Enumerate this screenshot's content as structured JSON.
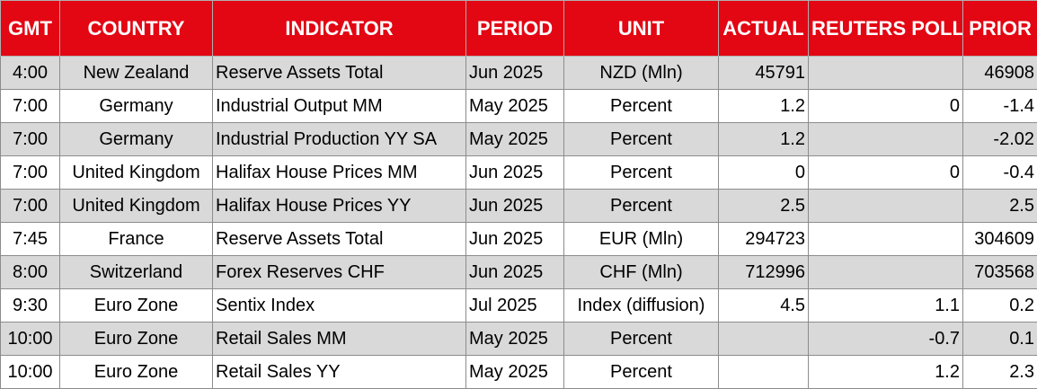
{
  "columns": [
    "GMT",
    "COUNTRY",
    "INDICATOR",
    "PERIOD",
    "UNIT",
    "ACTUAL",
    "REUTERS POLL",
    "PRIOR"
  ],
  "rows": [
    {
      "gmt": "4:00",
      "country": "New Zealand",
      "indicator": "Reserve Assets Total",
      "period": "Jun 2025",
      "unit": "NZD (Mln)",
      "actual": "45791",
      "poll": "",
      "prior": "46908"
    },
    {
      "gmt": "7:00",
      "country": "Germany",
      "indicator": "Industrial Output MM",
      "period": "May 2025",
      "unit": "Percent",
      "actual": "1.2",
      "poll": "0",
      "prior": "-1.4"
    },
    {
      "gmt": "7:00",
      "country": "Germany",
      "indicator": "Industrial Production YY SA",
      "period": "May 2025",
      "unit": "Percent",
      "actual": "1.2",
      "poll": "",
      "prior": "-2.02"
    },
    {
      "gmt": "7:00",
      "country": "United Kingdom",
      "indicator": "Halifax House Prices MM",
      "period": "Jun 2025",
      "unit": "Percent",
      "actual": "0",
      "poll": "0",
      "prior": "-0.4"
    },
    {
      "gmt": "7:00",
      "country": "United Kingdom",
      "indicator": "Halifax House Prices YY",
      "period": "Jun 2025",
      "unit": "Percent",
      "actual": "2.5",
      "poll": "",
      "prior": "2.5"
    },
    {
      "gmt": "7:45",
      "country": "France",
      "indicator": "Reserve Assets Total",
      "period": "Jun 2025",
      "unit": "EUR (Mln)",
      "actual": "294723",
      "poll": "",
      "prior": "304609"
    },
    {
      "gmt": "8:00",
      "country": "Switzerland",
      "indicator": "Forex Reserves CHF",
      "period": "Jun 2025",
      "unit": "CHF (Mln)",
      "actual": "712996",
      "poll": "",
      "prior": "703568"
    },
    {
      "gmt": "9:30",
      "country": "Euro Zone",
      "indicator": "Sentix Index",
      "period": "Jul 2025",
      "unit": "Index (diffusion)",
      "actual": "4.5",
      "poll": "1.1",
      "prior": "0.2"
    },
    {
      "gmt": "10:00",
      "country": "Euro Zone",
      "indicator": "Retail Sales MM",
      "period": "May 2025",
      "unit": "Percent",
      "actual": "",
      "poll": "-0.7",
      "prior": "0.1"
    },
    {
      "gmt": "10:00",
      "country": "Euro Zone",
      "indicator": "Retail Sales YY",
      "period": "May 2025",
      "unit": "Percent",
      "actual": "",
      "poll": "1.2",
      "prior": "2.3"
    }
  ],
  "colors": {
    "header_bg": "#e30613",
    "header_text": "#ffffff",
    "row_shade": "#d9d9d9"
  }
}
